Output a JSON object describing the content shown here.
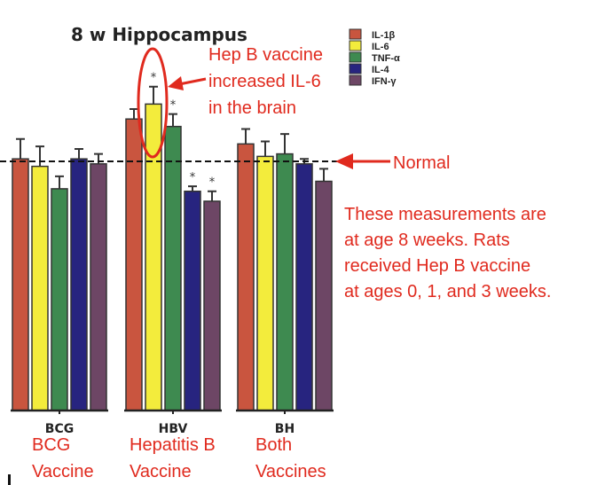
{
  "chart_data": {
    "type": "bar",
    "title": "8 w Hippocampus",
    "categories": [
      "BCG",
      "HBV",
      "BH"
    ],
    "category_annotations": [
      "BCG Vaccine",
      "Hepatitis B Vaccine",
      "Both Vaccines"
    ],
    "series": [
      {
        "name": "IL-1β",
        "color": "#c9553f",
        "values": [
          101,
          117,
          107
        ],
        "errors": [
          8,
          4,
          6
        ],
        "significant": [
          false,
          false,
          false
        ]
      },
      {
        "name": "IL-6",
        "color": "#f3ec3c",
        "values": [
          98,
          123,
          102
        ],
        "errors": [
          8,
          7,
          6
        ],
        "significant": [
          false,
          true,
          false
        ]
      },
      {
        "name": "TNF-α",
        "color": "#3e8a50",
        "values": [
          89,
          114,
          103
        ],
        "errors": [
          5,
          5,
          8
        ],
        "significant": [
          false,
          true,
          false
        ]
      },
      {
        "name": "IL-4",
        "color": "#27247f",
        "values": [
          101,
          88,
          99
        ],
        "errors": [
          4,
          2,
          2
        ],
        "significant": [
          false,
          true,
          false
        ]
      },
      {
        "name": "IFN-γ",
        "color": "#6d4665",
        "values": [
          99,
          84,
          92
        ],
        "errors": [
          4,
          4,
          5
        ],
        "significant": [
          false,
          true,
          false
        ]
      }
    ],
    "reference_line": {
      "value": 100,
      "label": "Normal",
      "style": "dashed"
    },
    "significance_marker": "*",
    "ylim": [
      0,
      135
    ],
    "xlabel": "",
    "ylabel": "",
    "legend": "top-right",
    "grid": false
  },
  "annotations": {
    "callout_lines": [
      "Hep B vaccine",
      "increased IL-6",
      "in the brain"
    ],
    "note_lines": [
      "These measurements are",
      "at age 8 weeks. Rats",
      "received Hep B vaccine",
      "at ages 0, 1, and 3 weeks."
    ],
    "annotation_color": "#e02a1e"
  }
}
